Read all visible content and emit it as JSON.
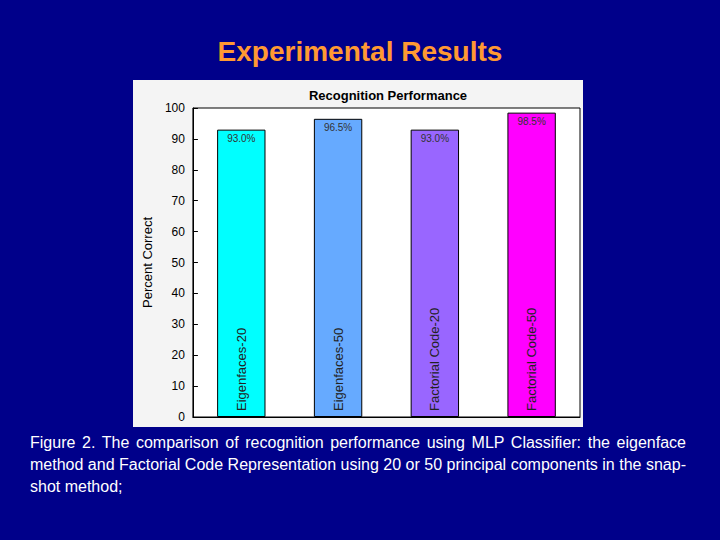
{
  "slide": {
    "title": "Experimental Results",
    "caption": "Figure 2. The comparison of recognition performance using MLP Classifier: the eigenface method and Factorial Code Representation using 20 or 50 principal components in the snap-shot method;"
  },
  "chart_data": {
    "type": "bar",
    "title": "Recognition Performance",
    "y_label": "Percent Correct",
    "categories": [
      "Eigenfaces-20",
      "Eigenfaces-50",
      "Factorial Code-20",
      "Factorial Code-50"
    ],
    "values": [
      93.0,
      96.5,
      93.0,
      98.5
    ],
    "value_labels": [
      "93.0%",
      "96.5%",
      "93.0%",
      "98.5%"
    ],
    "colors": [
      "#00ffff",
      "#66aaff",
      "#9966ff",
      "#ff00ff"
    ],
    "ylim": [
      0,
      100
    ],
    "yticks": [
      0,
      10,
      20,
      30,
      40,
      50,
      60,
      70,
      80,
      90,
      100
    ],
    "grid": false,
    "data_labels": true,
    "tick_labels": "y"
  }
}
